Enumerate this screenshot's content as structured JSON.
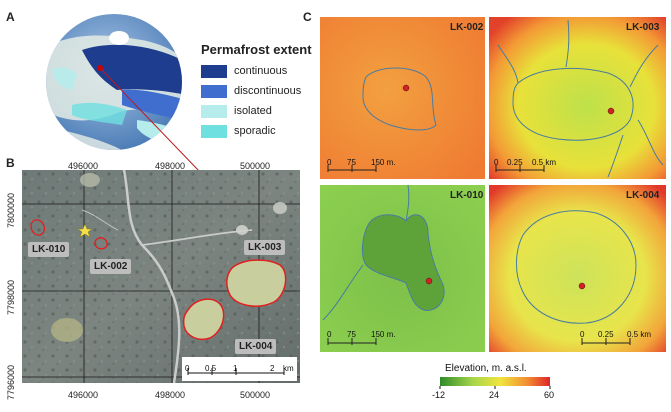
{
  "panels": {
    "a": {
      "label": "A"
    },
    "b": {
      "label": "B"
    },
    "c": {
      "label": "C"
    }
  },
  "legend": {
    "title": "Permafrost extent",
    "items": [
      {
        "label": "continuous",
        "color": "#1f3d8f"
      },
      {
        "label": "discontinuous",
        "color": "#3f6ecf"
      },
      {
        "label": "isolated",
        "color": "#b6ecec"
      },
      {
        "label": "sporadic",
        "color": "#6fe0e0"
      }
    ]
  },
  "map_b": {
    "x_ticks": [
      "496000",
      "498000",
      "500000"
    ],
    "y_ticks": [
      "7800000",
      "7798000",
      "7796000"
    ],
    "lake_labels": [
      "LK-010",
      "LK-002",
      "LK-003",
      "LK-004"
    ],
    "scale_labels": [
      "0",
      "0.5",
      "1",
      "2",
      "km"
    ]
  },
  "dem_panels": [
    {
      "title": "LK-002",
      "scale": [
        "0",
        "75",
        "150 m."
      ]
    },
    {
      "title": "LK-003",
      "scale": [
        "0",
        "0.25",
        "0.5 km"
      ]
    },
    {
      "title": "LK-010",
      "scale": [
        "0",
        "75",
        "150 m."
      ]
    },
    {
      "title": "LK-004",
      "scale": [
        "0",
        "0.25",
        "0.5 km"
      ]
    }
  ],
  "colorbar": {
    "title": "Elevation, m. a.s.l.",
    "ticks": [
      "-12",
      "24",
      "60"
    ]
  }
}
